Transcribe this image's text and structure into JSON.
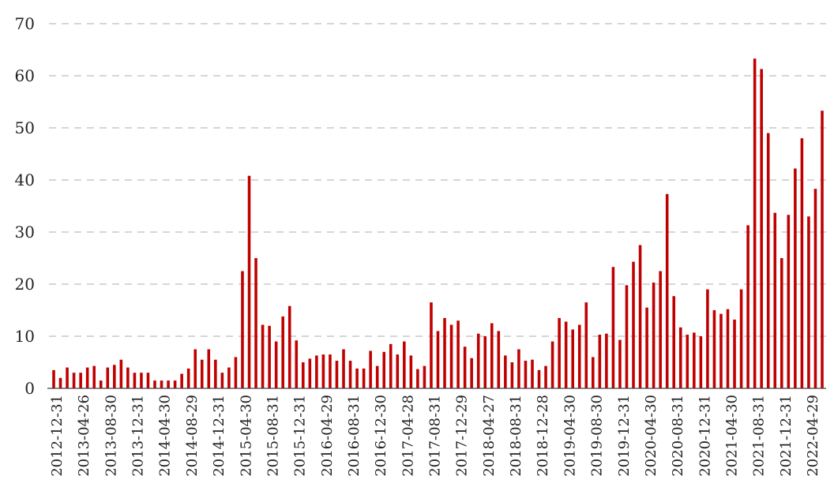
{
  "chart_data": {
    "type": "bar",
    "ylim": [
      0,
      70
    ],
    "yticks": [
      0,
      10,
      20,
      30,
      40,
      50,
      60,
      70
    ],
    "grid": true,
    "bar_color": "#c00000",
    "xtick_labels": [
      "2012-12-31",
      "2013-04-26",
      "2013-08-30",
      "2013-12-31",
      "2014-04-30",
      "2014-08-29",
      "2014-12-31",
      "2015-04-30",
      "2015-08-31",
      "2015-12-31",
      "2016-04-29",
      "2016-08-31",
      "2016-12-30",
      "2017-04-28",
      "2017-08-31",
      "2017-12-29",
      "2018-04-27",
      "2018-08-31",
      "2018-12-28",
      "2019-04-30",
      "2019-08-30",
      "2019-12-31",
      "2020-04-30",
      "2020-08-31",
      "2020-12-31",
      "2021-04-30",
      "2021-08-31",
      "2021-12-31",
      "2022-04-29"
    ],
    "values": [
      3.5,
      2,
      4,
      3,
      3,
      4,
      4.3,
      1.5,
      4,
      4.5,
      5.5,
      4,
      3,
      3,
      3,
      1.5,
      1.5,
      1.5,
      1.5,
      2.8,
      3.8,
      7.5,
      5.5,
      7.5,
      5.5,
      3,
      4,
      6,
      22.5,
      40.8,
      25,
      12.2,
      12,
      9,
      13.8,
      15.8,
      9.2,
      5,
      5.7,
      6.3,
      6.5,
      6.5,
      5.3,
      7.5,
      5.3,
      3.8,
      3.8,
      7.2,
      4.3,
      7,
      8.5,
      6.5,
      9,
      6.3,
      3.7,
      4.3,
      16.5,
      11,
      13.5,
      12.2,
      13,
      8,
      5.8,
      10.5,
      10,
      12.5,
      11,
      6.3,
      5,
      7.5,
      5.3,
      5.5,
      3.5,
      4.3,
      9,
      13.5,
      12.8,
      11.3,
      12.2,
      16.5,
      6,
      10.3,
      10.5,
      23.3,
      9.3,
      19.8,
      24.3,
      27.5,
      15.5,
      20.3,
      22.5,
      37.3,
      17.7,
      11.7,
      10.3,
      10.7,
      10,
      19,
      15,
      14.3,
      15.2,
      13.2,
      19,
      31.3,
      63.3,
      61.3,
      49,
      33.7,
      25,
      33.3,
      42.2,
      48,
      33,
      38.3,
      53.3
    ]
  }
}
